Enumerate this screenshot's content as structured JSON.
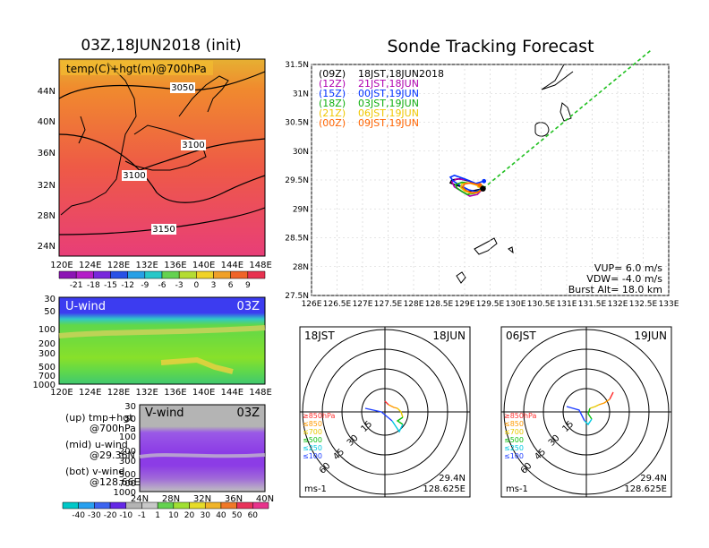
{
  "main_title": "Sonde Tracking Forecast",
  "left_title": "03Z,18JUN2018 (init)",
  "temp_panel": {
    "label": "temp(C)+hgt(m)@700hPa",
    "lat_labels": [
      "44N",
      "40N",
      "36N",
      "32N",
      "28N",
      "24N"
    ],
    "lon_labels": [
      "120E",
      "124E",
      "128E",
      "132E",
      "136E",
      "140E",
      "144E",
      "148E"
    ],
    "contour_labels": [
      "3050",
      "3100",
      "3100",
      "3150"
    ],
    "colorbar_labels": [
      "-21",
      "-18",
      "-15",
      "-12",
      "-9",
      "-6",
      "-3",
      "0",
      "3",
      "6",
      "9"
    ]
  },
  "uwind_panel": {
    "label": "U-wind",
    "time": "03Z",
    "p_labels": [
      "30",
      "50",
      "100",
      "200",
      "300",
      "500",
      "700",
      "1000"
    ],
    "lon_labels": [
      "120E",
      "124E",
      "128E",
      "132E",
      "136E",
      "140E",
      "144E",
      "148E"
    ]
  },
  "vwind_panel": {
    "label": "V-wind",
    "time": "03Z",
    "p_labels": [
      "30",
      "50",
      "100",
      "200",
      "300",
      "500",
      "700",
      "1000"
    ],
    "lat_labels": [
      "24N",
      "28N",
      "32N",
      "36N",
      "40N"
    ],
    "wind_colorbar_labels": [
      "-40",
      "-30",
      "-20",
      "-10",
      "-1",
      "1",
      "10",
      "20",
      "30",
      "40",
      "50",
      "60"
    ]
  },
  "info_text": {
    "up_line1": "(up) tmp+hgt",
    "up_line2": "@700hPa",
    "mid_line1": "(mid) u-wind",
    "mid_line2": "@29.36N",
    "bot_line1": "(bot) v-wind",
    "bot_line2": "@128.66E"
  },
  "track_legend": [
    {
      "code": "(09Z)",
      "text": "18JST,18JUN2018",
      "color": "#000000"
    },
    {
      "code": "(12Z)",
      "text": "21JST,18JUN",
      "color": "#b000b0"
    },
    {
      "code": "(15Z)",
      "text": "00JST,19JUN",
      "color": "#0030ff"
    },
    {
      "code": "(18Z)",
      "text": "03JST,19JUN",
      "color": "#10b010"
    },
    {
      "code": "(21Z)",
      "text": "06JST,19JUN",
      "color": "#f0c800"
    },
    {
      "code": "(00Z)",
      "text": "09JST,19JUN",
      "color": "#ff6400"
    }
  ],
  "track_stats": {
    "vup": "VUP=  6.0  m/s",
    "vdw": "VDW= -4.0  m/s",
    "burst": "Burst Alt= 18.0  km"
  },
  "hodo_left": {
    "time": "18JST",
    "date": "18JUN",
    "ring_labels": [
      "15",
      "30",
      "45",
      "60"
    ],
    "unit": "ms-1",
    "lat": "29.4N",
    "lon": "128.625E",
    "levels": [
      {
        "text": "≥850hPa",
        "color": "#ff3030"
      },
      {
        "text": "≤850",
        "color": "#ff9a00"
      },
      {
        "text": "≤700",
        "color": "#e8c800"
      },
      {
        "text": "≤500",
        "color": "#10c010"
      },
      {
        "text": "≤250",
        "color": "#00c8e0"
      },
      {
        "text": "≤100",
        "color": "#2040ff"
      }
    ]
  },
  "hodo_right": {
    "time": "06JST",
    "date": "19JUN",
    "ring_labels": [
      "15",
      "30",
      "45",
      "60"
    ],
    "unit": "ms-1",
    "lat": "29.4N",
    "lon": "128.625E",
    "levels": [
      {
        "text": "≥850hPa",
        "color": "#ff3030"
      },
      {
        "text": "≤850",
        "color": "#ff9a00"
      },
      {
        "text": "≤700",
        "color": "#e8c800"
      },
      {
        "text": "≤500",
        "color": "#10c010"
      },
      {
        "text": "≤250",
        "color": "#00c8e0"
      },
      {
        "text": "≤100",
        "color": "#2040ff"
      }
    ]
  },
  "chart_data": {
    "type": "line",
    "title": "Sonde Tracking Forecast",
    "x_ticks": [
      "126E",
      "126.5E",
      "127E",
      "127.5E",
      "128E",
      "128.5E",
      "129E",
      "129.5E",
      "130E",
      "130.5E",
      "131E",
      "131.5E",
      "132E",
      "132.5E",
      "133E"
    ],
    "y_ticks": [
      "27.5N",
      "28N",
      "28.5N",
      "29N",
      "29.5N",
      "30N",
      "30.5N",
      "31N",
      "31.5N"
    ],
    "xlim": [
      126,
      133
    ],
    "ylim": [
      27.5,
      31.5
    ],
    "series": [
      {
        "name": "(09Z) 18JST,18JUN2018",
        "color": "#000000",
        "lon": [
          129.36,
          129.2,
          129.05,
          128.95,
          128.8,
          128.72,
          128.75,
          128.9,
          129.1,
          129.28,
          129.36
        ],
        "lat": [
          29.35,
          29.32,
          29.3,
          29.38,
          29.42,
          29.45,
          29.5,
          29.52,
          29.48,
          29.4,
          29.35
        ]
      },
      {
        "name": "(12Z) 21JST,18JUN",
        "color": "#b000b0",
        "lon": [
          129.36,
          129.25,
          129.1,
          128.95,
          128.8,
          128.75,
          128.85,
          129.05,
          129.25,
          129.36
        ],
        "lat": [
          29.35,
          29.25,
          29.22,
          29.3,
          29.38,
          29.47,
          29.52,
          29.5,
          29.42,
          29.35
        ]
      },
      {
        "name": "(15Z) 00JST,19JUN",
        "color": "#0030ff",
        "lon": [
          129.36,
          129.22,
          129.08,
          128.92,
          128.78,
          128.72,
          128.8,
          129.0,
          129.22,
          129.38
        ],
        "lat": [
          29.35,
          29.3,
          29.33,
          29.4,
          29.48,
          29.55,
          29.58,
          29.52,
          29.44,
          29.48
        ]
      },
      {
        "name": "(18Z) 03JST,19JUN",
        "color": "#10b010",
        "lon": [
          129.36,
          129.2,
          129.05,
          128.95,
          128.85,
          128.82,
          128.95,
          129.15,
          129.33
        ],
        "lat": [
          29.35,
          29.27,
          29.25,
          29.3,
          29.36,
          29.42,
          29.46,
          29.44,
          29.38
        ]
      },
      {
        "name": "(21Z) 06JST,19JUN",
        "color": "#f0c800",
        "lon": [
          129.36,
          129.25,
          129.12,
          129.0,
          128.92,
          128.95,
          129.08,
          129.28
        ],
        "lat": [
          29.35,
          29.28,
          29.27,
          29.31,
          29.37,
          29.43,
          29.45,
          29.4
        ]
      },
      {
        "name": "(00Z) 09JST,19JUN",
        "color": "#ff6400",
        "lon": [
          129.36,
          129.26,
          129.14,
          129.02,
          128.96,
          129.0,
          129.12,
          129.3
        ],
        "lat": [
          29.35,
          29.29,
          29.28,
          29.32,
          29.38,
          29.43,
          29.45,
          29.41
        ]
      },
      {
        "name": "",
        "color": "#20c020",
        "dashed": true,
        "lon": [
          129.36,
          133
        ],
        "lat": [
          29.35,
          32.0
        ]
      }
    ]
  },
  "colors": {
    "temp_warm": "#f0782a",
    "temp_hot": "#e8406a",
    "uwind_top": "#3c3cf0",
    "uwind_mid": "#80e028",
    "vwind_top": "#b4b4b4",
    "vwind_mid": "#8c3ce6",
    "track_line": "#20c020"
  }
}
